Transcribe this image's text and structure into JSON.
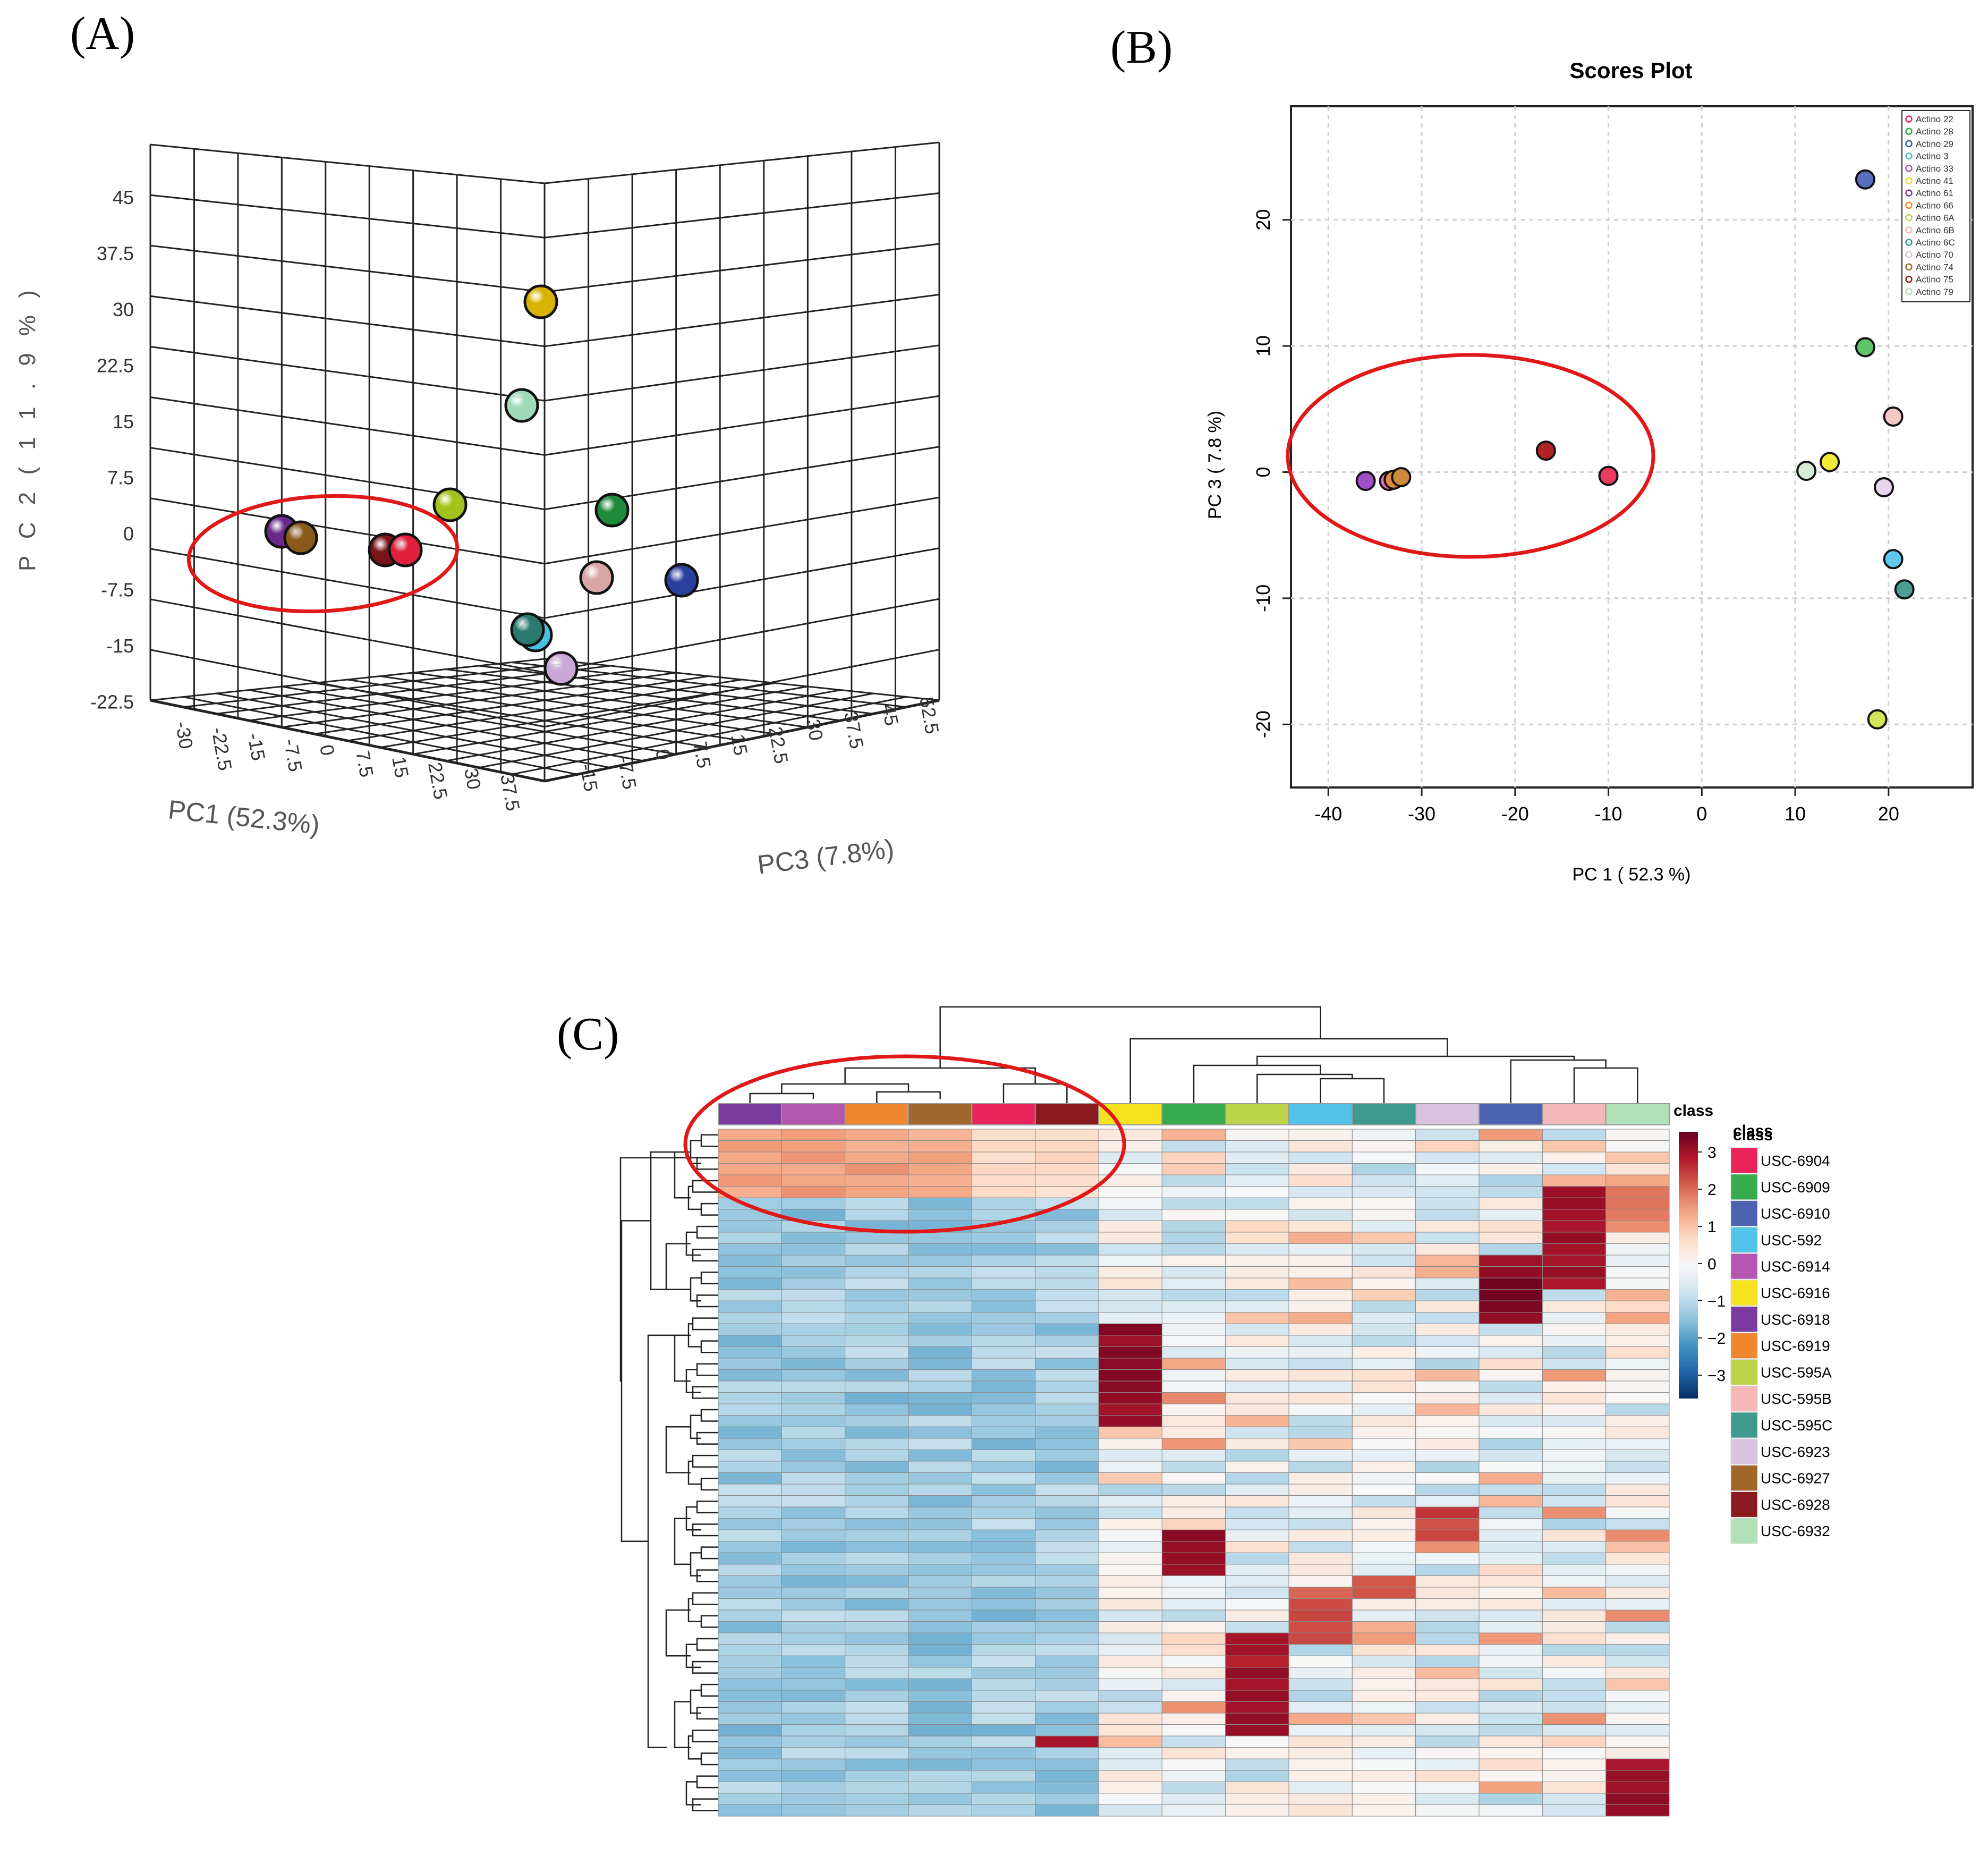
{
  "panels": {
    "a": "(A)",
    "b": "(B)",
    "c": "(C)"
  },
  "chart_data": [
    {
      "id": "A",
      "type": "scatter",
      "subtype": "3d",
      "title": "",
      "xlabel": "PC1 (52.3%)",
      "ylabel": "P C 2  ( 1 1 . 9 % )",
      "zlabel": "PC3 (7.8%)",
      "pc2_ticks": [
        "45",
        "37.5",
        "30",
        "22.5",
        "15",
        "7.5",
        "0",
        "-7.5",
        "-15",
        "-22.5"
      ],
      "pc1_ticks": [
        "-30",
        "-22.5",
        "-15",
        "-7.5",
        "0",
        "7.5",
        "15",
        "22.5",
        "30",
        "37.5"
      ],
      "pc3_ticks": [
        "-15",
        "-7.5",
        "0",
        "7.5",
        "15",
        "22.5",
        "30",
        "37.5",
        "45",
        "52.5"
      ],
      "points": [
        {
          "color": "#d9b300",
          "note": "yellow, top"
        },
        {
          "color": "#9fd9b8"
        },
        {
          "color": "#a3c21e"
        },
        {
          "color": "#1f8a3c"
        },
        {
          "color": "#6a2a8c"
        },
        {
          "color": "#8a5a1c"
        },
        {
          "color": "#7a1418"
        },
        {
          "color": "#e0203c"
        },
        {
          "color": "#d9a6a6"
        },
        {
          "color": "#2a3f9e"
        },
        {
          "color": "#2a7a72"
        },
        {
          "color": "#4cc0e0"
        },
        {
          "color": "#c9a8d8"
        }
      ]
    },
    {
      "id": "B",
      "type": "scatter",
      "title": "Scores Plot",
      "xlabel": "PC 1 ( 52.3 %)",
      "ylabel": "PC 3 ( 7.8 %)",
      "xlim": [
        -44,
        29
      ],
      "ylim": [
        -25,
        29
      ],
      "xticks": [
        -40,
        -30,
        -20,
        -10,
        0,
        10,
        20
      ],
      "yticks": [
        -20,
        -10,
        0,
        10,
        20
      ],
      "grid": true,
      "legend_position": "top-right",
      "legend": [
        {
          "label": "Actino 22",
          "color": "#e8245a"
        },
        {
          "label": "Actino 28",
          "color": "#2aa84a"
        },
        {
          "label": "Actino 29",
          "color": "#3a5aa8"
        },
        {
          "label": "Actino 3",
          "color": "#48bfe6"
        },
        {
          "label": "Actino 33",
          "color": "#b455b0"
        },
        {
          "label": "Actino 41",
          "color": "#f2e02a"
        },
        {
          "label": "Actino 61",
          "color": "#7b3a9e"
        },
        {
          "label": "Actino 66",
          "color": "#f0862e"
        },
        {
          "label": "Actino 6A",
          "color": "#b8d24a"
        },
        {
          "label": "Actino 6B",
          "color": "#f4b9b9"
        },
        {
          "label": "Actino 6C",
          "color": "#3f9a8e"
        },
        {
          "label": "Actino 70",
          "color": "#d9c3e0"
        },
        {
          "label": "Actino 74",
          "color": "#a0662a"
        },
        {
          "label": "Actino 75",
          "color": "#8a1a20"
        },
        {
          "label": "Actino 79",
          "color": "#b2e0b8"
        }
      ],
      "points": [
        {
          "x": -36.0,
          "y": -0.7,
          "color": "#a04ec6"
        },
        {
          "x": -33.5,
          "y": -0.7,
          "color": "#e070c0"
        },
        {
          "x": -33.0,
          "y": -0.6,
          "color": "#e08a40"
        },
        {
          "x": -32.2,
          "y": -0.4,
          "color": "#d08a38"
        },
        {
          "x": -16.7,
          "y": 1.7,
          "color": "#b02428"
        },
        {
          "x": -10.0,
          "y": -0.3,
          "color": "#ec3a60"
        },
        {
          "x": 17.5,
          "y": 23.2,
          "color": "#5a6ec0"
        },
        {
          "x": 17.5,
          "y": 9.9,
          "color": "#5cc46a"
        },
        {
          "x": 20.5,
          "y": 4.4,
          "color": "#f6c8c4"
        },
        {
          "x": 13.7,
          "y": 0.8,
          "color": "#f2ea3a"
        },
        {
          "x": 11.2,
          "y": 0.1,
          "color": "#d4ecd6"
        },
        {
          "x": 19.5,
          "y": -1.2,
          "color": "#e8d6ee"
        },
        {
          "x": 20.5,
          "y": -6.9,
          "color": "#5ecaee"
        },
        {
          "x": 21.7,
          "y": -9.3,
          "color": "#4a9e92"
        },
        {
          "x": 18.8,
          "y": -19.6,
          "color": "#d2e25a"
        }
      ]
    },
    {
      "id": "C",
      "type": "heatmap",
      "title": "",
      "column_header": "class",
      "colorbar_label": "class",
      "colorbar_ticks": [
        "3",
        "2",
        "1",
        "0",
        "−1",
        "−2",
        "−3"
      ],
      "legend_title": "class",
      "legend": [
        {
          "label": "USC-6904",
          "color": "#e8245a"
        },
        {
          "label": "USC-6909",
          "color": "#36ac4e"
        },
        {
          "label": "USC-6910",
          "color": "#4a62b0"
        },
        {
          "label": "USC-592",
          "color": "#52c4ea"
        },
        {
          "label": "USC-6914",
          "color": "#b455b0"
        },
        {
          "label": "USC-6916",
          "color": "#f6e21e"
        },
        {
          "label": "USC-6918",
          "color": "#7b3a9e"
        },
        {
          "label": "USC-6919",
          "color": "#f0862e"
        },
        {
          "label": "USC-595A",
          "color": "#bcd44a"
        },
        {
          "label": "USC-595B",
          "color": "#f6b9b9"
        },
        {
          "label": "USC-595C",
          "color": "#3f9a8e"
        },
        {
          "label": "USC-6923",
          "color": "#d9c3e0"
        },
        {
          "label": "USC-6927",
          "color": "#a0662a"
        },
        {
          "label": "USC-6928",
          "color": "#8a1a20"
        },
        {
          "label": "USC-6932",
          "color": "#b2e0b8"
        }
      ],
      "column_classes": [
        "USC-6918",
        "USC-6914",
        "USC-6919",
        "USC-6927",
        "USC-6904",
        "USC-6928",
        "USC-6916",
        "USC-6909",
        "USC-595A",
        "USC-592",
        "USC-595C",
        "USC-6923",
        "USC-6910",
        "USC-595B",
        "USC-6932"
      ],
      "row_count": 60,
      "value_range": [
        -3.5,
        3.5
      ],
      "colormap": [
        "#053061",
        "#2166ac",
        "#4393c3",
        "#92c5de",
        "#d1e5f0",
        "#f7f7f7",
        "#fddbc7",
        "#f4a582",
        "#d6604d",
        "#b2182b",
        "#67001f"
      ]
    }
  ]
}
